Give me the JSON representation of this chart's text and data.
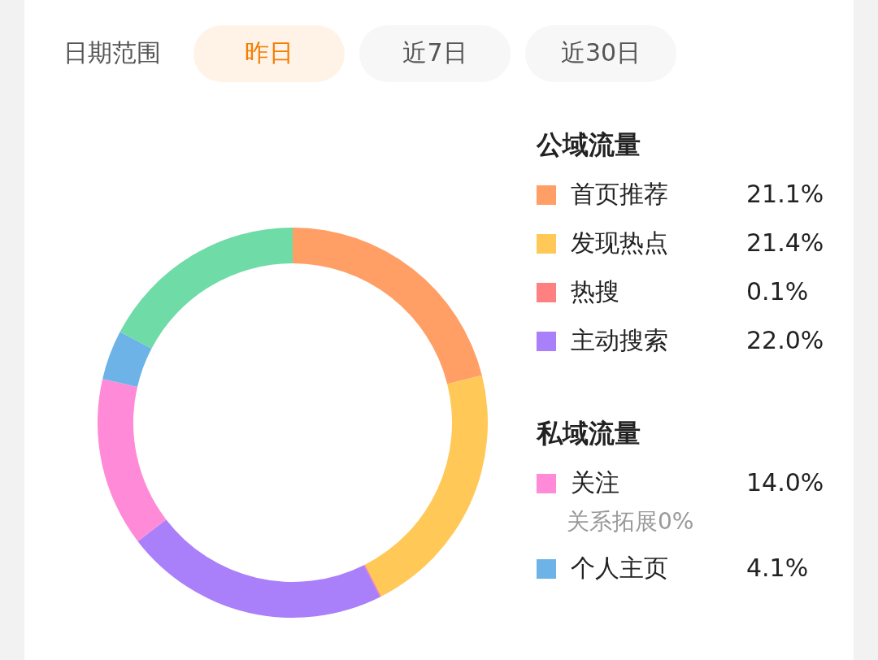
{
  "chart_data": {
    "type": "donut",
    "categories": [
      "首页推荐",
      "发现热点",
      "热搜",
      "主动搜索",
      "关注",
      "个人主页",
      null
    ],
    "values": [
      21.1,
      21.4,
      0.1,
      22.0,
      14.0,
      4.1,
      17.3
    ],
    "colors": [
      "#ff9f66",
      "#ffc857",
      "#ff8080",
      "#a97ffa",
      "#ff8ad8",
      "#6db3e8",
      "#6fdba6"
    ],
    "value_labels": [
      "21.1%",
      "21.4%",
      "0.1%",
      "22.0%",
      "14.0%",
      "4.1%",
      null
    ],
    "legend": "right",
    "annotations": [
      "日期范围",
      "昨日",
      "近7日",
      "近30日",
      "公域流量",
      "私域流量",
      "关系拓展0%"
    ]
  }
}
